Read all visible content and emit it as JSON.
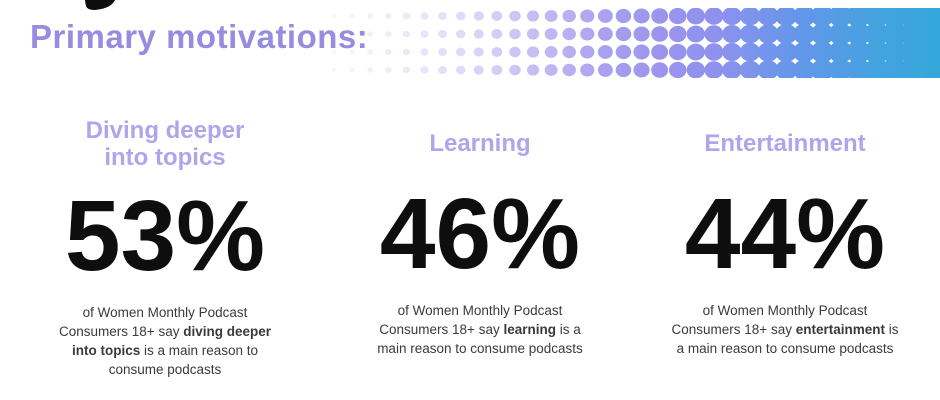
{
  "header": {
    "title": "Primary motivations:"
  },
  "colors": {
    "background": "#ffffff",
    "title_accent": "#968de1",
    "heading_accent": "#aea6ed",
    "number": "#0e0e0e",
    "caption_text": "#3a3a3a"
  },
  "decor": {
    "banner_gradient": [
      "#edeaf9",
      "#d6d0f5",
      "#b3aaf0",
      "#9b94ef",
      "#8a92ee",
      "#6097e9",
      "#43a3df",
      "#35a7da"
    ]
  },
  "stats": [
    {
      "title": "Diving deeper\ninto topics",
      "value": "53%",
      "caption_lines": [
        [
          {
            "t": "of Women Monthly Podcast"
          }
        ],
        [
          {
            "t": "Consumers 18+ say "
          },
          {
            "t": "diving deeper",
            "bold": true
          }
        ],
        [
          {
            "t": "into topics",
            "bold": true
          },
          {
            "t": " is a main reason to"
          }
        ],
        [
          {
            "t": "consume podcasts"
          }
        ]
      ]
    },
    {
      "title": "Learning",
      "value": "46%",
      "caption_lines": [
        [
          {
            "t": "of Women Monthly Podcast"
          }
        ],
        [
          {
            "t": "Consumers 18+ say "
          },
          {
            "t": "learning",
            "bold": true
          },
          {
            "t": " is a"
          }
        ],
        [
          {
            "t": "main reason to consume podcasts"
          }
        ]
      ]
    },
    {
      "title": "Entertainment",
      "value": "44%",
      "caption_lines": [
        [
          {
            "t": "of Women Monthly Podcast"
          }
        ],
        [
          {
            "t": "Consumers 18+ say "
          },
          {
            "t": "entertainment",
            "bold": true
          },
          {
            "t": " is"
          }
        ],
        [
          {
            "t": "a main reason to consume podcasts"
          }
        ]
      ]
    }
  ],
  "chart_data": {
    "type": "bar",
    "title": "Primary motivations:",
    "categories": [
      "Diving deeper into topics",
      "Learning",
      "Entertainment"
    ],
    "values": [
      53,
      46,
      44
    ],
    "unit": "%",
    "population": "Women Monthly Podcast Consumers 18+",
    "xlabel": "",
    "ylabel": "",
    "ylim": [
      0,
      100
    ]
  }
}
